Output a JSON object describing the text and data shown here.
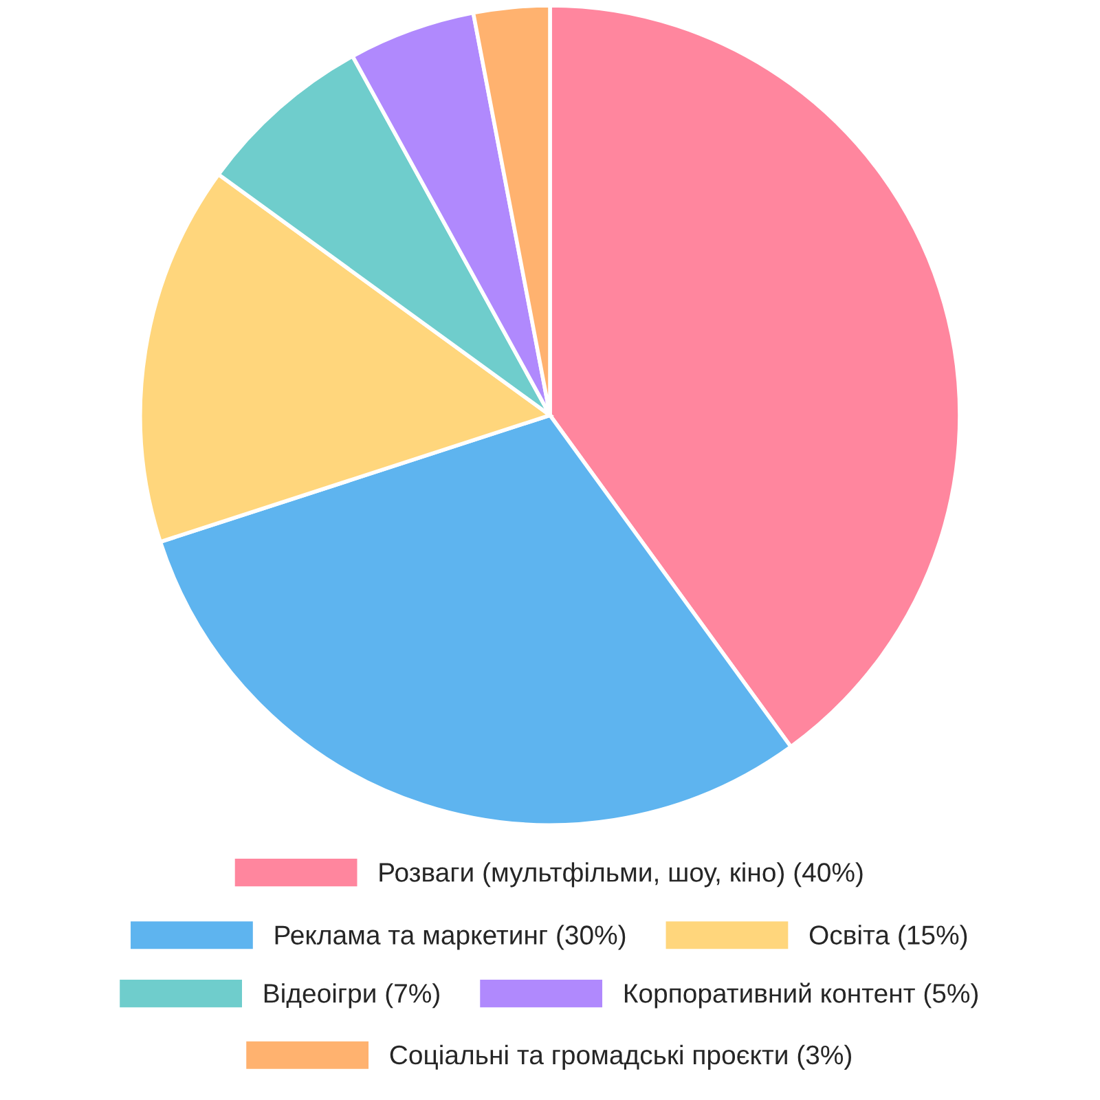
{
  "chart_data": {
    "type": "pie",
    "categories": [
      "Розваги (мультфільми, шоу, кіно) (40%)",
      "Реклама та маркетинг (30%)",
      "Освіта (15%)",
      "Відеоігри (7%)",
      "Корпоративний контент (5%)",
      "Соціальні та громадські проєкти (3%)"
    ],
    "values": [
      40,
      30,
      15,
      7,
      5,
      3
    ],
    "colors": [
      "#ff869e",
      "#5eb4ef",
      "#ffd67c",
      "#6fcdcc",
      "#b089fd",
      "#ffb26f"
    ],
    "legend": "bottom"
  }
}
